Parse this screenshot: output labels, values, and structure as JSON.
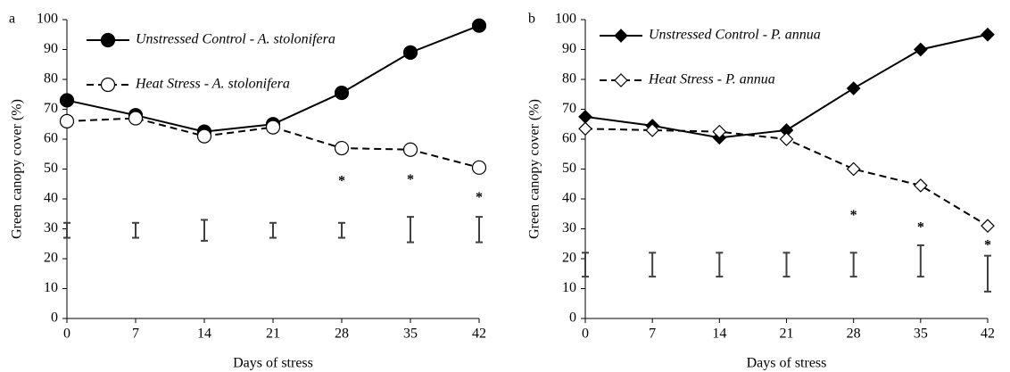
{
  "chart_data": [
    {
      "type": "line",
      "panel_label": "a",
      "x_label": "Days of stress",
      "y_label": "Green canopy cover (%)",
      "x": [
        0,
        7,
        14,
        21,
        28,
        35,
        42
      ],
      "xlim": [
        0,
        42
      ],
      "xticks": [
        0,
        7,
        14,
        21,
        28,
        35,
        42
      ],
      "ylim": [
        0,
        100
      ],
      "yticks": [
        0,
        10,
        20,
        30,
        40,
        50,
        60,
        70,
        80,
        90,
        100
      ],
      "series": [
        {
          "name": "Unstressed Control - A. stolonifera",
          "color": "#000000",
          "marker": "circle",
          "filled": true,
          "dashed": false,
          "values": [
            73,
            68,
            62.5,
            65,
            75.5,
            89,
            98
          ]
        },
        {
          "name": "Heat Stress - A. stolonifera",
          "color": "#000000",
          "marker": "circle",
          "filled": false,
          "dashed": true,
          "values": [
            66,
            67,
            61,
            64,
            57,
            56.5,
            50.5
          ]
        }
      ],
      "error_bars": {
        "color": "#404040",
        "low": [
          27,
          27,
          26,
          27,
          27,
          25.5,
          25.5
        ],
        "high": [
          32,
          32,
          33,
          32,
          32,
          34,
          34
        ]
      },
      "annotations": [
        {
          "text": "*",
          "x": 28,
          "y": 47.5
        },
        {
          "text": "*",
          "x": 35,
          "y": 48
        },
        {
          "text": "*",
          "x": 42,
          "y": 42
        }
      ]
    },
    {
      "type": "line",
      "panel_label": "b",
      "x_label": "Days of stress",
      "y_label": "Green canopy cover (%)",
      "x": [
        0,
        7,
        14,
        21,
        28,
        35,
        42
      ],
      "xlim": [
        0,
        42
      ],
      "xticks": [
        0,
        7,
        14,
        21,
        28,
        35,
        42
      ],
      "ylim": [
        0,
        100
      ],
      "yticks": [
        0,
        10,
        20,
        30,
        40,
        50,
        60,
        70,
        80,
        90,
        100
      ],
      "series": [
        {
          "name": "Unstressed Control - P. annua",
          "color": "#000000",
          "marker": "diamond",
          "filled": true,
          "dashed": false,
          "values": [
            67.5,
            64.5,
            60.5,
            63,
            77,
            90,
            95
          ]
        },
        {
          "name": "Heat Stress - P. annua",
          "color": "#000000",
          "marker": "diamond",
          "filled": false,
          "dashed": true,
          "values": [
            63.5,
            63,
            62.5,
            60,
            50,
            44.5,
            31
          ]
        }
      ],
      "error_bars": {
        "color": "#404040",
        "low": [
          14,
          14,
          14,
          14,
          14,
          14,
          9
        ],
        "high": [
          22,
          22,
          22,
          22,
          22,
          24.5,
          21
        ]
      },
      "annotations": [
        {
          "text": "*",
          "x": 28,
          "y": 36
        },
        {
          "text": "*",
          "x": 35,
          "y": 32
        },
        {
          "text": "*",
          "x": 42,
          "y": 26
        }
      ]
    }
  ]
}
